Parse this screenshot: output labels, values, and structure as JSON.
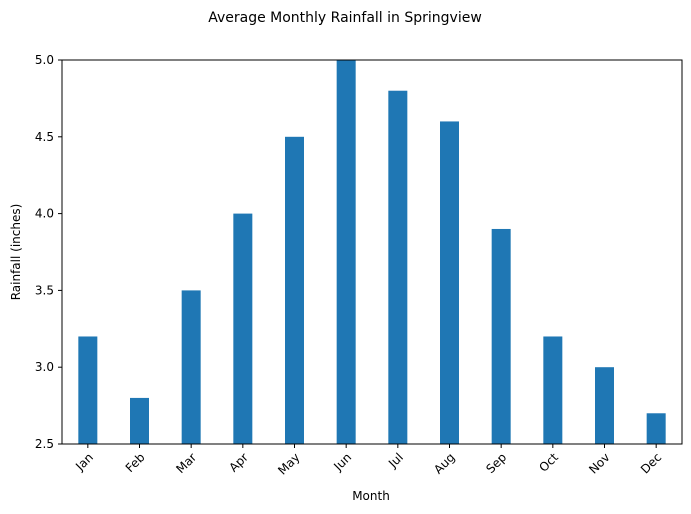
{
  "chart_data": {
    "type": "bar",
    "title": "Average Monthly Rainfall in Springview",
    "xlabel": "Month",
    "ylabel": "Rainfall (inches)",
    "categories": [
      "Jan",
      "Feb",
      "Mar",
      "Apr",
      "May",
      "Jun",
      "Jul",
      "Aug",
      "Sep",
      "Oct",
      "Nov",
      "Dec"
    ],
    "values": [
      3.2,
      2.8,
      3.5,
      4.0,
      4.5,
      5.0,
      4.8,
      4.6,
      3.9,
      3.2,
      3.0,
      2.7
    ],
    "ylim": [
      2.5,
      5.0
    ],
    "yticks": [
      "2.5",
      "3.0",
      "3.5",
      "4.0",
      "4.5",
      "5.0"
    ],
    "bar_color": "#1f77b4",
    "grid": false,
    "xtick_rotation": 45
  }
}
